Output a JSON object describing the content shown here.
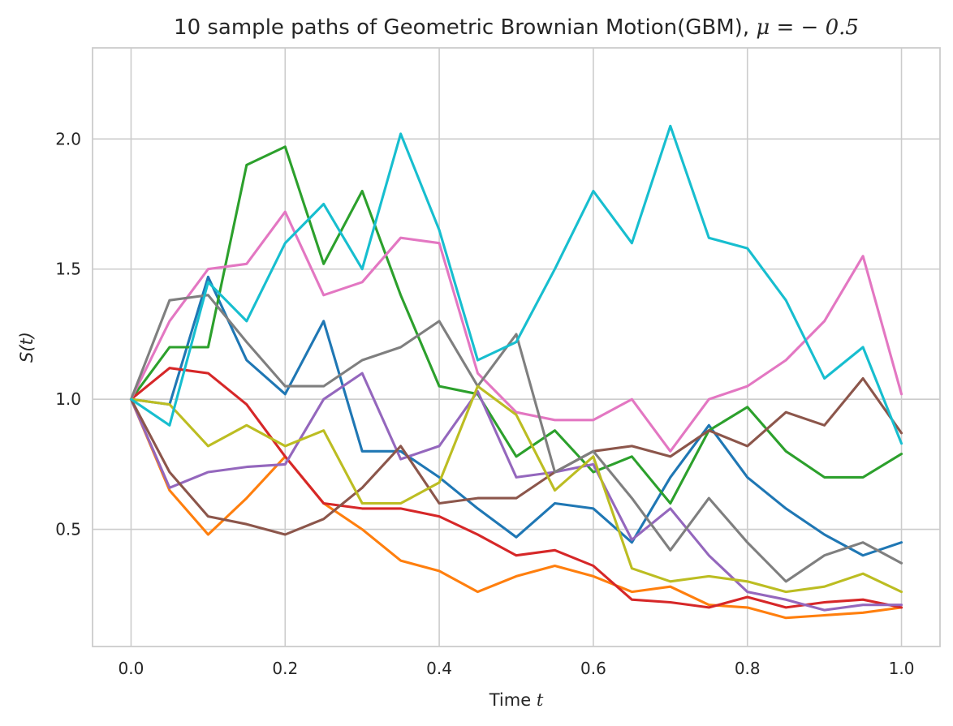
{
  "chart_data": {
    "type": "line",
    "title_text": "10 sample paths of Geometric Brownian Motion(GBM), ",
    "title_math": "μ = − 0.5",
    "xlabel_text": "Time ",
    "xlabel_math": "t",
    "ylabel_text": "S(t)",
    "xlim": [
      -0.05,
      1.05
    ],
    "ylim": [
      0.05,
      2.35
    ],
    "xticks": [
      0.0,
      0.2,
      0.4,
      0.6,
      0.8,
      1.0
    ],
    "xtick_labels": [
      "0.0",
      "0.2",
      "0.4",
      "0.6",
      "0.8",
      "1.0"
    ],
    "yticks": [
      0.5,
      1.0,
      1.5,
      2.0
    ],
    "ytick_labels": [
      "0.5",
      "1.0",
      "1.5",
      "2.0"
    ],
    "grid": true,
    "x": [
      0.0,
      0.05,
      0.1,
      0.15,
      0.2,
      0.25,
      0.3,
      0.35,
      0.4,
      0.45,
      0.5,
      0.55,
      0.6,
      0.65,
      0.7,
      0.75,
      0.8,
      0.85,
      0.9,
      0.95,
      1.0
    ],
    "series": [
      {
        "color": "#1f77b4",
        "values": [
          1.0,
          0.98,
          1.47,
          1.15,
          1.02,
          1.3,
          0.8,
          0.8,
          0.7,
          0.58,
          0.47,
          0.6,
          0.58,
          0.45,
          0.7,
          0.9,
          0.7,
          0.58,
          0.48,
          0.4,
          0.45
        ]
      },
      {
        "color": "#ff7f0e",
        "values": [
          1.0,
          0.65,
          0.48,
          0.62,
          0.78,
          0.6,
          0.5,
          0.38,
          0.34,
          0.26,
          0.32,
          0.36,
          0.32,
          0.26,
          0.28,
          0.21,
          0.2,
          0.16,
          0.17,
          0.18,
          0.2
        ]
      },
      {
        "color": "#2ca02c",
        "values": [
          1.0,
          1.2,
          1.2,
          1.9,
          1.97,
          1.52,
          1.8,
          1.4,
          1.05,
          1.02,
          0.78,
          0.88,
          0.72,
          0.78,
          0.6,
          0.88,
          0.97,
          0.8,
          0.7,
          0.7,
          0.79
        ]
      },
      {
        "color": "#d62728",
        "values": [
          1.0,
          1.12,
          1.1,
          0.98,
          0.78,
          0.6,
          0.58,
          0.58,
          0.55,
          0.48,
          0.4,
          0.42,
          0.36,
          0.23,
          0.22,
          0.2,
          0.24,
          0.2,
          0.22,
          0.23,
          0.2
        ]
      },
      {
        "color": "#9467bd",
        "values": [
          1.0,
          0.66,
          0.72,
          0.74,
          0.75,
          1.0,
          1.1,
          0.77,
          0.82,
          1.03,
          0.7,
          0.72,
          0.75,
          0.46,
          0.58,
          0.4,
          0.26,
          0.23,
          0.19,
          0.21,
          0.21
        ]
      },
      {
        "color": "#8c564b",
        "values": [
          1.0,
          0.72,
          0.55,
          0.52,
          0.48,
          0.54,
          0.66,
          0.82,
          0.6,
          0.62,
          0.62,
          0.72,
          0.8,
          0.82,
          0.78,
          0.88,
          0.82,
          0.95,
          0.9,
          1.08,
          0.87
        ]
      },
      {
        "color": "#e377c2",
        "values": [
          1.0,
          1.3,
          1.5,
          1.52,
          1.72,
          1.4,
          1.45,
          1.62,
          1.6,
          1.1,
          0.95,
          0.92,
          0.92,
          1.0,
          0.8,
          1.0,
          1.05,
          1.15,
          1.3,
          1.55,
          1.02
        ]
      },
      {
        "color": "#7f7f7f",
        "values": [
          1.0,
          1.38,
          1.4,
          1.22,
          1.05,
          1.05,
          1.15,
          1.2,
          1.3,
          1.05,
          1.25,
          0.72,
          0.8,
          0.62,
          0.42,
          0.62,
          0.45,
          0.3,
          0.4,
          0.45,
          0.37
        ]
      },
      {
        "color": "#bcbd22",
        "values": [
          1.0,
          0.98,
          0.82,
          0.9,
          0.82,
          0.88,
          0.6,
          0.6,
          0.68,
          1.05,
          0.94,
          0.65,
          0.78,
          0.35,
          0.3,
          0.32,
          0.3,
          0.26,
          0.28,
          0.33,
          0.26
        ]
      },
      {
        "color": "#17becf",
        "values": [
          1.0,
          0.9,
          1.45,
          1.3,
          1.6,
          1.75,
          1.5,
          2.02,
          1.65,
          1.15,
          1.22,
          1.5,
          1.8,
          1.6,
          2.05,
          1.62,
          1.58,
          1.38,
          1.08,
          1.2,
          0.83
        ]
      }
    ]
  }
}
